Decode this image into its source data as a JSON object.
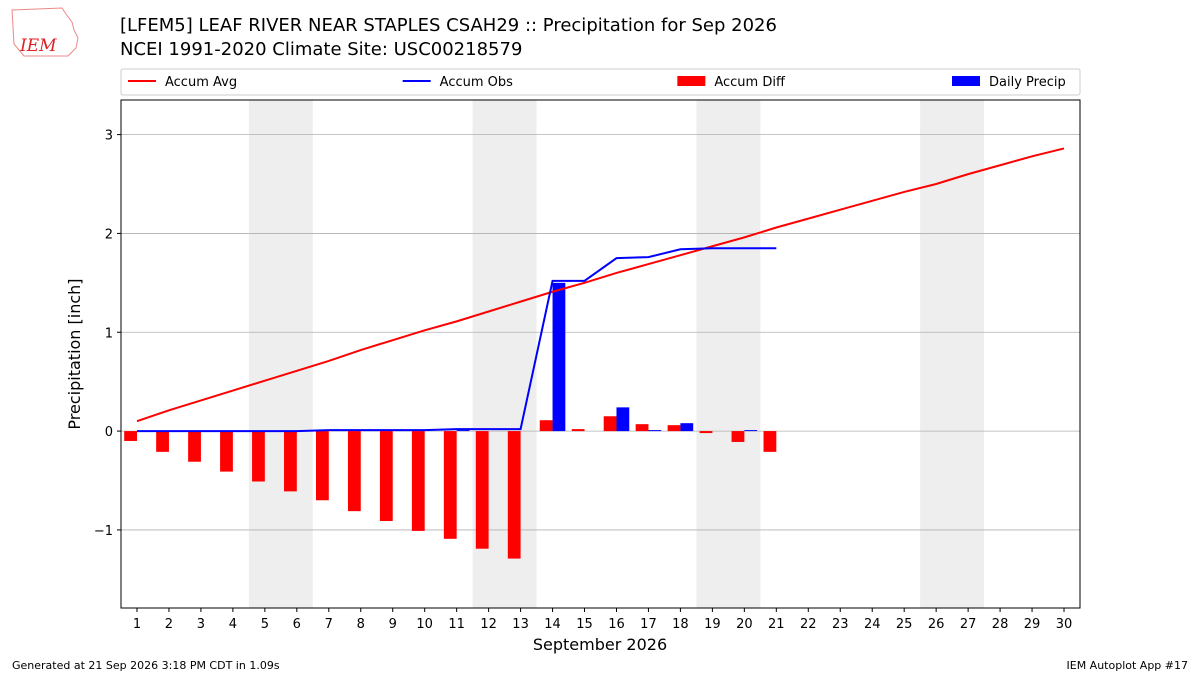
{
  "chart_data": {
    "type": "combo",
    "title": "[LFEM5] LEAF RIVER NEAR STAPLES CSAH29 :: Precipitation for Sep 2026",
    "subtitle": "NCEI 1991-2020 Climate Site: USC00218579",
    "x_label": "September 2026",
    "y_label": "Precipitation [inch]",
    "footer_left": "Generated at 21 Sep 2026 3:18 PM CDT in 1.09s",
    "footer_right": "IEM Autoplot App #17",
    "logo_text": "IEM",
    "x": [
      1,
      2,
      3,
      4,
      5,
      6,
      7,
      8,
      9,
      10,
      11,
      12,
      13,
      14,
      15,
      16,
      17,
      18,
      19,
      20,
      21,
      22,
      23,
      24,
      25,
      26,
      27,
      28,
      29,
      30
    ],
    "xlim": [
      0.5,
      30.5
    ],
    "xticks": [
      1,
      2,
      3,
      4,
      5,
      6,
      7,
      8,
      9,
      10,
      11,
      12,
      13,
      14,
      15,
      16,
      17,
      18,
      19,
      20,
      21,
      22,
      23,
      24,
      25,
      26,
      27,
      28,
      29,
      30
    ],
    "ylim": [
      -1.79,
      3.35
    ],
    "yticks": [
      {
        "value": -1,
        "label": "−1"
      },
      0,
      1,
      2,
      3
    ],
    "grid": true,
    "shaded_spans": [
      [
        4.5,
        6.5
      ],
      [
        11.5,
        13.5
      ],
      [
        18.5,
        20.5
      ],
      [
        25.5,
        27.5
      ]
    ],
    "shade_color": "#eeeeee",
    "legend": "top",
    "series": [
      {
        "name": "Accum Avg",
        "type": "line",
        "color": "#ff0000",
        "values": [
          0.1,
          0.21,
          0.31,
          0.41,
          0.51,
          0.61,
          0.71,
          0.82,
          0.92,
          1.02,
          1.11,
          1.21,
          1.31,
          1.41,
          1.5,
          1.6,
          1.69,
          1.78,
          1.87,
          1.96,
          2.06,
          2.15,
          2.24,
          2.33,
          2.42,
          2.5,
          2.6,
          2.69,
          2.78,
          2.86
        ]
      },
      {
        "name": "Accum Obs",
        "type": "line",
        "color": "#0000ff",
        "values": [
          0,
          0,
          0,
          0,
          0,
          0,
          0.01,
          0.01,
          0.01,
          0.01,
          0.02,
          0.02,
          0.02,
          1.52,
          1.52,
          1.75,
          1.76,
          1.84,
          1.85,
          1.85,
          1.85,
          null,
          null,
          null,
          null,
          null,
          null,
          null,
          null,
          null
        ]
      },
      {
        "name": "Accum Diff",
        "type": "bar",
        "color": "#ff0000",
        "values": [
          -0.1,
          -0.21,
          -0.31,
          -0.41,
          -0.51,
          -0.61,
          -0.7,
          -0.81,
          -0.91,
          -1.01,
          -1.09,
          -1.19,
          -1.29,
          0.11,
          0.02,
          0.15,
          0.07,
          0.06,
          -0.02,
          -0.11,
          -0.21,
          null,
          null,
          null,
          null,
          null,
          null,
          null,
          null,
          null
        ]
      },
      {
        "name": "Daily Precip",
        "type": "bar",
        "color": "#0000ff",
        "values": [
          0,
          0,
          0,
          0,
          0,
          0,
          0,
          0,
          0,
          0,
          0.01,
          0,
          0,
          1.5,
          0,
          0.24,
          0.01,
          0.08,
          0,
          0.01,
          0,
          null,
          null,
          null,
          null,
          null,
          null,
          null,
          null,
          null
        ]
      }
    ]
  }
}
